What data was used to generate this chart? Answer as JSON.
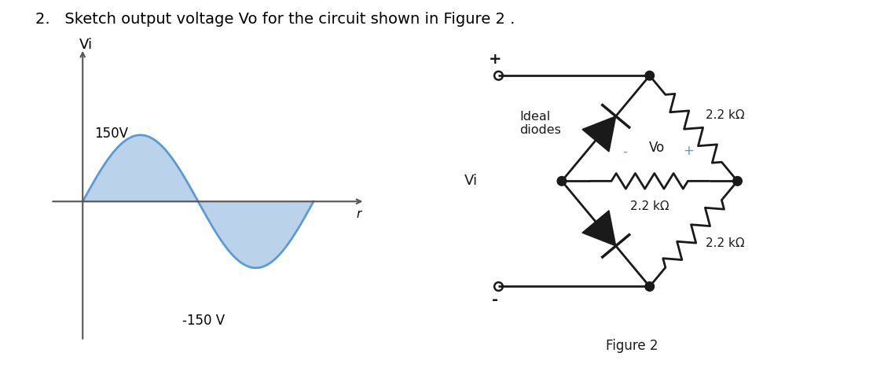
{
  "title": "2.   Sketch output voltage Vo for the circuit shown in Figure 2 .",
  "title_fontsize": 14,
  "bg_color": "#ffffff",
  "sine_color": "#5b9bd5",
  "sine_fill_color": "#aecce8",
  "axis_color": "#555555",
  "text_color": "#000000",
  "vi_label": "Vi",
  "r_label": "r",
  "v150_label": "150V",
  "vm150_label": "-150 V",
  "figure2_label": "Figure 2",
  "ideal_diodes_label": "Ideal\ndiodes",
  "vi_circuit_label": "Vi",
  "vo_label": "Vo",
  "vo_minus": "-",
  "vo_plus": "+",
  "r22_top": "2.2 kΩ",
  "r22_mid": "2.2 kΩ",
  "r22_bot": "2.2 kΩ",
  "plus_terminal": "+",
  "minus_terminal": "-"
}
